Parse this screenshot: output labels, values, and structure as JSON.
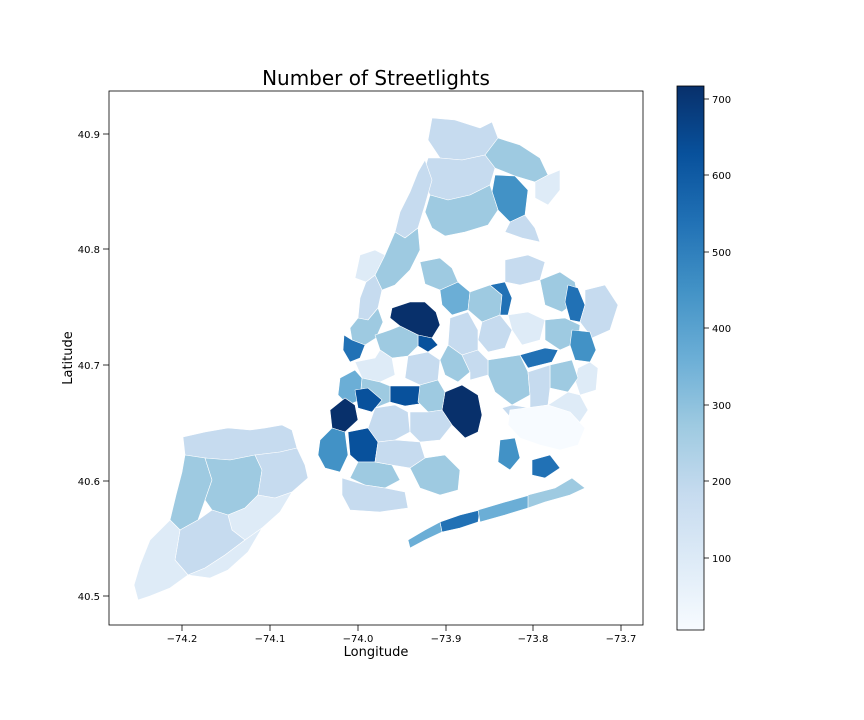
{
  "chart_data": {
    "type": "choropleth",
    "title": "Number of Streetlights",
    "xlabel": "Longitude",
    "ylabel": "Latitude",
    "x_ticks": [
      "−74.2",
      "−74.1",
      "−74.0",
      "−73.9",
      "−73.8",
      "−73.7"
    ],
    "y_ticks": [
      "40.5",
      "40.6",
      "40.7",
      "40.8",
      "40.9"
    ],
    "colorbar": {
      "ticks": [
        "100",
        "200",
        "300",
        "400",
        "500",
        "600",
        "700"
      ],
      "range": [
        5,
        715
      ],
      "colormap": "Blues"
    },
    "colors": {
      "c0": "#f7fbff",
      "c1": "#deebf7",
      "c2": "#c6dbef",
      "c3": "#9ecae1",
      "c4": "#6baed6",
      "c5": "#4292c6",
      "c6": "#2171b5",
      "c7": "#08519c",
      "c8": "#08306b"
    }
  }
}
